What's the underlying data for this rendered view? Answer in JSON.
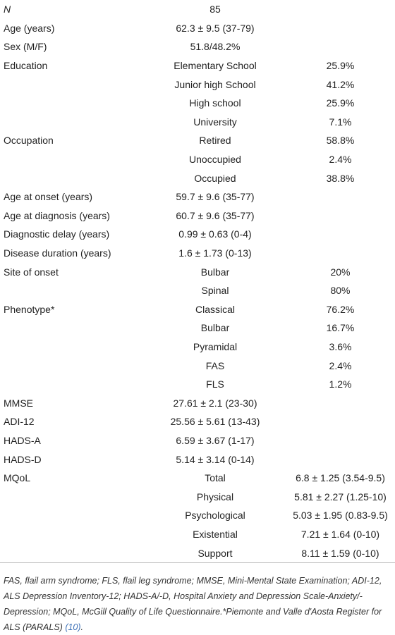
{
  "table": {
    "rows": [
      {
        "label": "N",
        "value": "85"
      },
      {
        "label": "Age (years)",
        "value": "62.3 ± 9.5 (37-79)"
      },
      {
        "label": "Sex (M/F)",
        "value": "51.8/48.2%"
      },
      {
        "label": "Education",
        "value": "Elementary School",
        "pct": "25.9%"
      },
      {
        "value": "Junior high School",
        "pct": "41.2%"
      },
      {
        "value": "High school",
        "pct": "25.9%"
      },
      {
        "value": "University",
        "pct": "7.1%"
      },
      {
        "label": "Occupation",
        "value": "Retired",
        "pct": "58.8%"
      },
      {
        "value": "Unoccupied",
        "pct": "2.4%"
      },
      {
        "value": "Occupied",
        "pct": "38.8%"
      },
      {
        "label": "Age at onset (years)",
        "value": "59.7 ± 9.6 (35-77)"
      },
      {
        "label": "Age at diagnosis (years)",
        "value": "60.7 ± 9.6 (35-77)"
      },
      {
        "label": "Diagnostic delay (years)",
        "value": "0.99 ± 0.63 (0-4)"
      },
      {
        "label": "Disease duration (years)",
        "value": "1.6 ± 1.73 (0-13)"
      },
      {
        "label": "Site of onset",
        "value": "Bulbar",
        "pct": "20%"
      },
      {
        "value": "Spinal",
        "pct": "80%"
      },
      {
        "label": "Phenotype*",
        "value": "Classical",
        "pct": "76.2%"
      },
      {
        "value": "Bulbar",
        "pct": "16.7%"
      },
      {
        "value": "Pyramidal",
        "pct": "3.6%"
      },
      {
        "value": "FAS",
        "pct": "2.4%"
      },
      {
        "value": "FLS",
        "pct": "1.2%"
      },
      {
        "label": "MMSE",
        "value": "27.61 ± 2.1 (23-30)"
      },
      {
        "label": "ADI-12",
        "value": "25.56 ± 5.61 (13-43)"
      },
      {
        "label": "HADS-A",
        "value": "6.59 ± 3.67 (1-17)"
      },
      {
        "label": "HADS-D",
        "value": "5.14 ± 3.14 (0-14)"
      },
      {
        "label": "MQoL",
        "value": "Total",
        "pct": "6.8 ± 1.25 (3.54-9.5)"
      },
      {
        "value": "Physical",
        "pct": "5.81 ± 2.27 (1.25-10)"
      },
      {
        "value": "Psychological",
        "pct": "5.03 ± 1.95 (0.83-9.5)"
      },
      {
        "value": "Existential",
        "pct": "7.21 ± 1.64 (0-10)"
      },
      {
        "value": "Support",
        "pct": "8.11 ± 1.59 (0-10)"
      }
    ]
  },
  "footnote": {
    "text": "FAS, flail arm syndrome; FLS, flail leg syndrome; MMSE, Mini-Mental State Examination; ADI-12, ALS Depression Inventory-12; HADS-A/-D, Hospital Anxiety and Depression Scale-Anxiety/-Depression; MQoL, McGill Quality of Life Questionnaire.*Piemonte and Valle d'Aosta Register for ALS (PARALS) ",
    "ref": "(10)",
    "end": "."
  }
}
